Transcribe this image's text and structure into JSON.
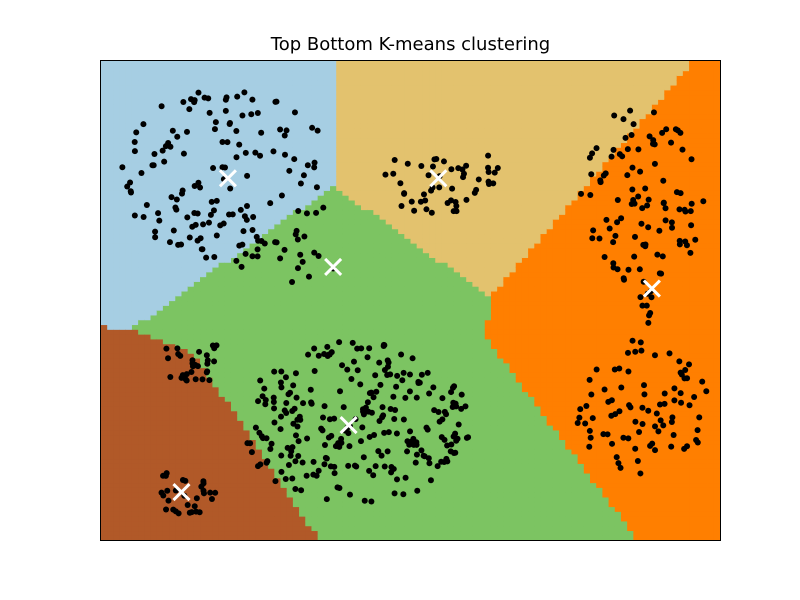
{
  "chart_data": {
    "type": "scatter",
    "title": "Top Bottom K-means clustering",
    "xlabel": "",
    "ylabel": "",
    "xlim": [
      0,
      100
    ],
    "ylim": [
      0,
      100
    ],
    "axis_ticks": false,
    "grid": false,
    "legend": "none",
    "region_colors": [
      "#a6cee3",
      "#e3c26e",
      "#7cc462",
      "#ff7f00",
      "#b15928"
    ],
    "point_color": "#000000",
    "centroid_color": "#ffffff",
    "centroids": [
      {
        "x": 20.5,
        "y": 75.5,
        "region": 0
      },
      {
        "x": 54.5,
        "y": 75.5,
        "region": 1
      },
      {
        "x": 37.5,
        "y": 57.0,
        "region": 2
      },
      {
        "x": 89.0,
        "y": 52.5,
        "region": 3
      },
      {
        "x": 40.0,
        "y": 24.0,
        "region": 2
      },
      {
        "x": 13.0,
        "y": 10.0,
        "region": 4
      }
    ],
    "clusters": [
      {
        "cx": 20.5,
        "cy": 76.5,
        "rx": 17.5,
        "ry": 18,
        "n": 140
      },
      {
        "cx": 55.0,
        "cy": 75.5,
        "rx": 9.5,
        "ry": 8,
        "n": 50
      },
      {
        "cx": 30.5,
        "cy": 59.0,
        "rx": 9,
        "ry": 5.5,
        "n": 22
      },
      {
        "cx": 87.5,
        "cy": 72.0,
        "rx": 10,
        "ry": 19,
        "n": 100
      },
      {
        "cx": 87.5,
        "cy": 28.0,
        "rx": 11,
        "ry": 15,
        "n": 85
      },
      {
        "cx": 88.0,
        "cy": 48.5,
        "rx": 1.2,
        "ry": 6,
        "n": 10
      },
      {
        "cx": 41.0,
        "cy": 24.5,
        "rx": 19,
        "ry": 17,
        "n": 260
      },
      {
        "cx": 15.0,
        "cy": 37.5,
        "rx": 5.5,
        "ry": 5,
        "n": 30
      },
      {
        "cx": 13.5,
        "cy": 10.0,
        "rx": 5.5,
        "ry": 5,
        "n": 30
      }
    ]
  }
}
